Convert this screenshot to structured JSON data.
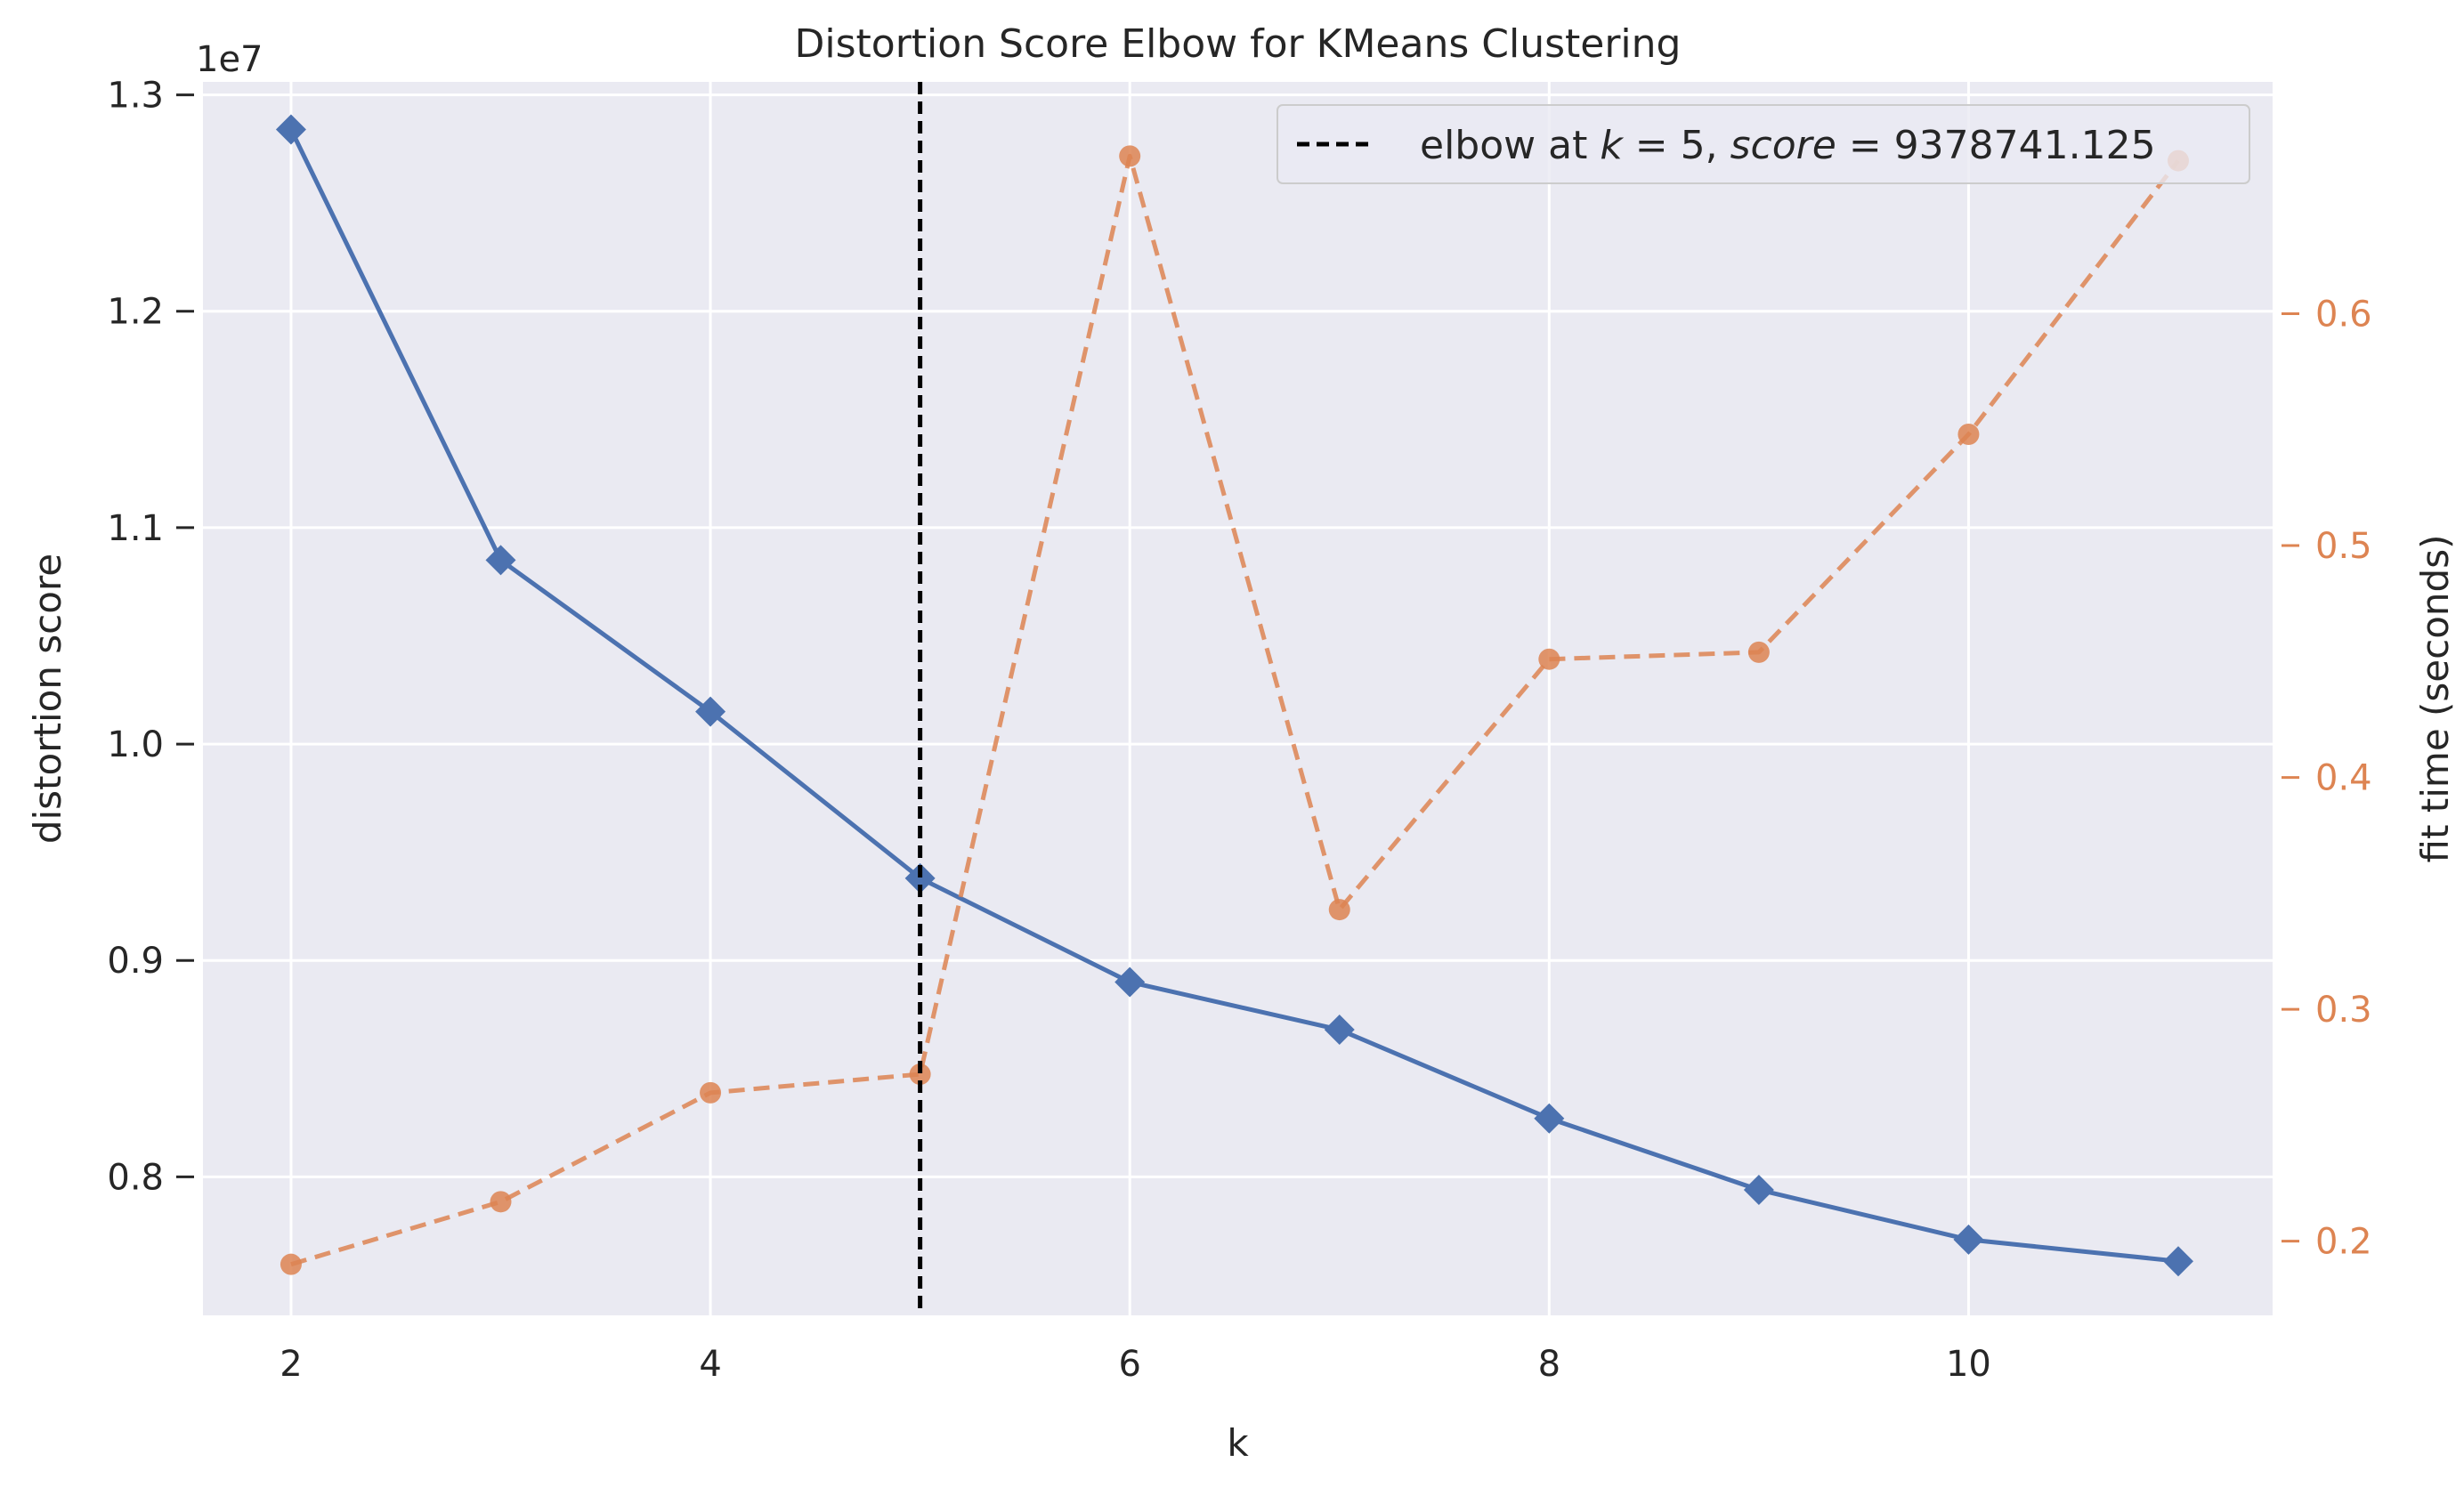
{
  "chart_data": {
    "type": "line",
    "title": "Distortion Score Elbow for KMeans Clustering",
    "xlabel": "k",
    "ylabel": "distortion score",
    "y2label": "fit time (seconds)",
    "y_offset_label": "1e7",
    "x": [
      2,
      3,
      4,
      5,
      6,
      7,
      8,
      9,
      10,
      11
    ],
    "xlim": [
      1.58,
      11.45
    ],
    "ylim": [
      7.36,
      13.06
    ],
    "y2lim": [
      0.168,
      0.7
    ],
    "x_ticks": [
      2,
      4,
      6,
      8,
      10
    ],
    "x_tick_labels": [
      "2",
      "4",
      "6",
      "8",
      "10"
    ],
    "y_ticks": [
      8.0,
      9.0,
      10.0,
      11.0,
      12.0,
      13.0
    ],
    "y_tick_labels": [
      "0.8",
      "0.9",
      "1.0",
      "1.1",
      "1.2",
      "1.3"
    ],
    "y2_ticks": [
      0.2,
      0.3,
      0.4,
      0.5,
      0.6
    ],
    "y2_tick_labels": [
      "0.2",
      "0.3",
      "0.4",
      "0.5",
      "0.6"
    ],
    "grid": true,
    "legend_position": "top-right",
    "series": [
      {
        "axis": "left",
        "marker": "diamond",
        "line": "solid",
        "color": "#4c72b0",
        "values": [
          12.84,
          10.85,
          10.15,
          9.38,
          8.9,
          8.68,
          8.27,
          7.94,
          7.71,
          7.61
        ]
      },
      {
        "axis": "right",
        "marker": "circle",
        "line": "dashed",
        "color": "#dd8452",
        "values": [
          0.19,
          0.217,
          0.264,
          0.272,
          0.668,
          0.343,
          0.451,
          0.454,
          0.548,
          0.666
        ]
      }
    ],
    "elbow": {
      "k": 5,
      "color": "#000000",
      "legend_parts": [
        "elbow at ",
        "k",
        " = 5, ",
        "score",
        " = 9378741.125"
      ]
    },
    "colors": {
      "axes_bg": "#eaeaf2",
      "grid": "#ffffff",
      "right_axis": "#dd8452"
    }
  }
}
